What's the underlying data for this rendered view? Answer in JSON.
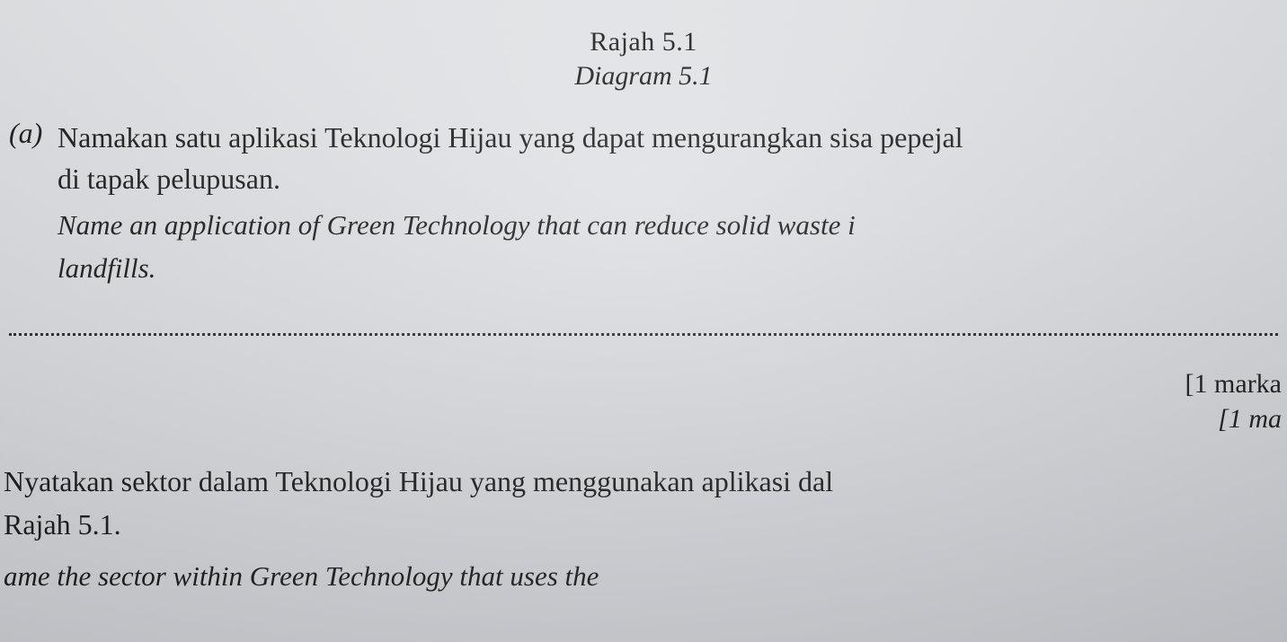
{
  "header": {
    "rajah": "Rajah 5.1",
    "diagram": "Diagram 5.1"
  },
  "partA": {
    "label": "(a)",
    "malay_line1": "Namakan satu aplikasi Teknologi Hijau yang dapat mengurangkan sisa pepejal",
    "malay_line2": "di tapak pelupusan.",
    "english_line1": "Name an application of Green Technology that can reduce solid waste i",
    "english_line2": "landfills."
  },
  "marks": {
    "malay": "[1 marka",
    "english": "[1 ma"
  },
  "partB": {
    "malay_line1": "Nyatakan sektor dalam Teknologi Hijau yang menggunakan aplikasi dal",
    "malay_line2": "Rajah 5.1.",
    "english_line1": "ame the sector within Green Technology that uses the"
  },
  "colors": {
    "text": "#1a1a1a",
    "bg_top": "#e8e9ec",
    "bg_bottom": "#c8cacf",
    "dotted": "#2a2a2a"
  },
  "fonts": {
    "family": "Times New Roman",
    "body_size_pt": 24,
    "header_size_pt": 22
  }
}
